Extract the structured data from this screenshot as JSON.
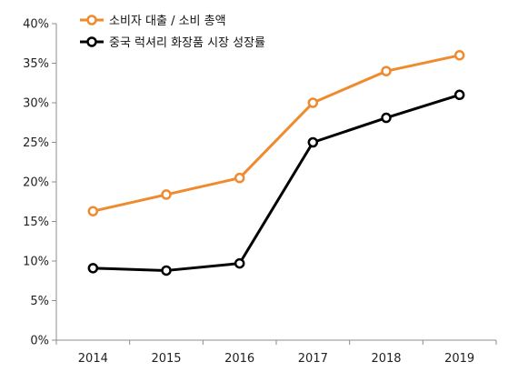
{
  "chart_data": {
    "type": "line",
    "categories": [
      "2014",
      "2015",
      "2016",
      "2017",
      "2018",
      "2019"
    ],
    "series": [
      {
        "name": "소비자 대출 / 소비 총액",
        "color": "#ef8a2e",
        "values": [
          16.3,
          18.4,
          20.5,
          30.0,
          34.0,
          36.0
        ]
      },
      {
        "name": "중국 럭셔리 화장품 시장 성장률",
        "color": "#000000",
        "values": [
          9.1,
          8.8,
          9.7,
          25.0,
          28.1,
          31.0
        ]
      }
    ],
    "y_ticks": [
      "0%",
      "5%",
      "10%",
      "15%",
      "20%",
      "25%",
      "30%",
      "35%",
      "40%"
    ],
    "ylim": [
      0,
      40
    ],
    "y_unit": "%",
    "legend_position": "top-left",
    "grid": false
  }
}
